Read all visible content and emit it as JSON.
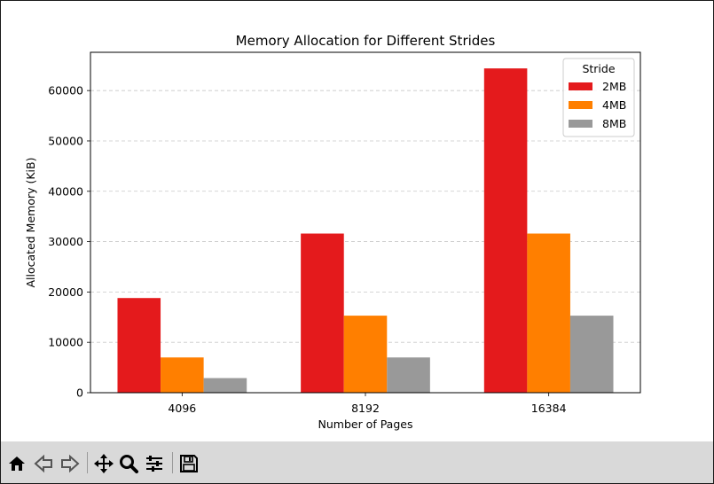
{
  "chart_data": {
    "type": "bar",
    "title": "Memory Allocation for Different Strides",
    "xlabel": "Number of Pages",
    "ylabel": "Allocated Memory (KiB)",
    "categories": [
      "4096",
      "8192",
      "16384"
    ],
    "series": [
      {
        "name": "2MB",
        "color": "#e41a1c",
        "values": [
          18800,
          31600,
          64400
        ]
      },
      {
        "name": "4MB",
        "color": "#ff7f00",
        "values": [
          7000,
          15300,
          31600
        ]
      },
      {
        "name": "8MB",
        "color": "#999999",
        "values": [
          2900,
          7000,
          15300
        ]
      }
    ],
    "ylim": [
      0,
      67600
    ],
    "yticks": [
      0,
      10000,
      20000,
      30000,
      40000,
      50000,
      60000
    ],
    "legend_title": "Stride",
    "legend_position": "upper right",
    "grid": "horizontal dashed"
  },
  "toolbar": {
    "icons": [
      "home-icon",
      "back-arrow-icon",
      "forward-arrow-icon",
      "pan-icon",
      "zoom-icon",
      "configure-subplots-icon",
      "save-icon"
    ]
  }
}
